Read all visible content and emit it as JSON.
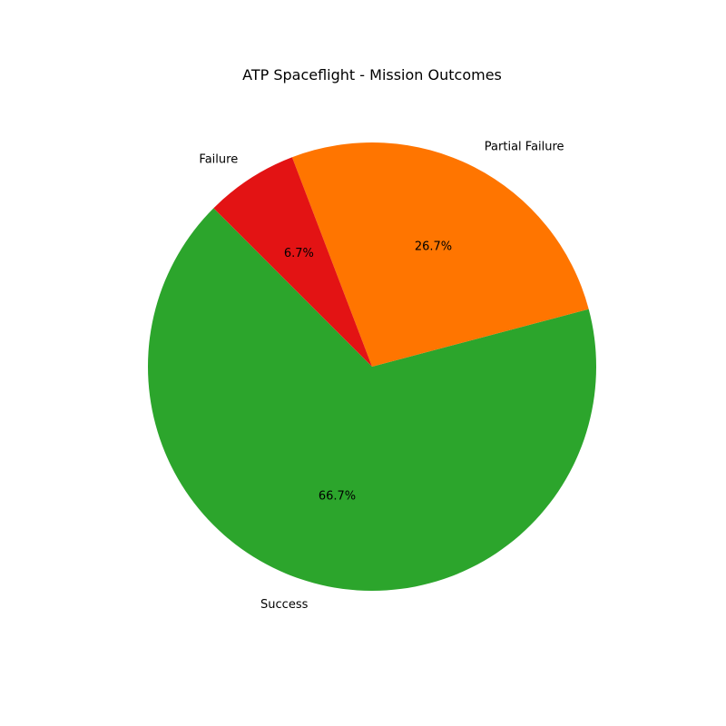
{
  "chart_data": {
    "type": "pie",
    "title": "ATP Spaceflight - Mission Outcomes",
    "slices": [
      {
        "label": "Success",
        "value": 66.7,
        "pct_label": "66.7%",
        "color": "#2ca52c"
      },
      {
        "label": "Partial Failure",
        "value": 26.7,
        "pct_label": "26.7%",
        "color": "#ff7500"
      },
      {
        "label": "Failure",
        "value": 6.7,
        "pct_label": "6.7%",
        "color": "#e31314"
      }
    ],
    "start_angle_deg": 135,
    "direction": "counterclockwise",
    "legend": false
  }
}
